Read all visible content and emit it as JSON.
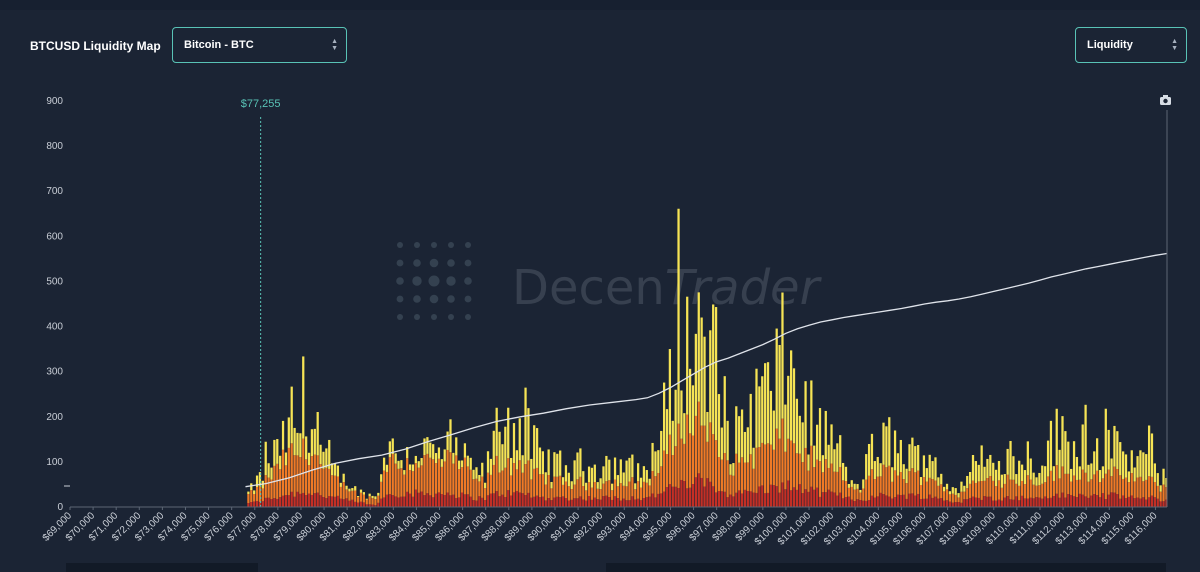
{
  "header": {
    "title": "BTCUSD Liquidity Map",
    "asset_select": "Bitcoin - BTC",
    "mode_select": "Liquidity"
  },
  "watermark": {
    "text_a": "Decen",
    "text_b": "Trader"
  },
  "colors": {
    "background": "#1b2434",
    "accent": "#59c3b6",
    "band_low": "#c42f25",
    "band_mid": "#ef7a26",
    "band_high": "#f6e455",
    "cumulative_line": "#dfe3ea"
  },
  "icons": {
    "snapshot": "camera-icon"
  },
  "chart_data": {
    "type": "bar",
    "stacked": true,
    "ylim": [
      0,
      900
    ],
    "yticks": [
      0,
      100,
      200,
      300,
      400,
      500,
      600,
      700,
      800,
      900
    ],
    "xlim": [
      69000,
      116500
    ],
    "xticks": [
      69000,
      70000,
      71000,
      72000,
      73000,
      74000,
      75000,
      76000,
      77000,
      78000,
      79000,
      80000,
      81000,
      82000,
      83000,
      84000,
      85000,
      86000,
      87000,
      88000,
      89000,
      90000,
      91000,
      92000,
      93000,
      94000,
      95000,
      96000,
      97000,
      98000,
      99000,
      100000,
      101000,
      102000,
      103000,
      104000,
      105000,
      106000,
      107000,
      108000,
      109000,
      110000,
      111000,
      112000,
      113000,
      114000,
      115000,
      116000
    ],
    "xtick_labels": [
      "$69,000",
      "$70,000",
      "$71,000",
      "$72,000",
      "$73,000",
      "$74,000",
      "$75,000",
      "$76,000",
      "$77,000",
      "$78,000",
      "$79,000",
      "$80,000",
      "$81,000",
      "$82,000",
      "$83,000",
      "$84,000",
      "$85,000",
      "$86,000",
      "$87,000",
      "$88,000",
      "$89,000",
      "$90,000",
      "$91,000",
      "$92,000",
      "$93,000",
      "$94,000",
      "$95,000",
      "$96,000",
      "$97,000",
      "$98,000",
      "$99,000",
      "$100,000",
      "$101,000",
      "$102,000",
      "$103,000",
      "$104,000",
      "$105,000",
      "$106,000",
      "$107,000",
      "$108,000",
      "$109,000",
      "$110,000",
      "$111,000",
      "$112,000",
      "$113,000",
      "$114,000",
      "$115,000",
      "$116,000"
    ],
    "current_price": {
      "value": 77255,
      "label": "$77,255"
    },
    "bucket_width": 125,
    "profile": [
      [
        76600,
        10,
        15,
        0
      ],
      [
        77000,
        10,
        20,
        15
      ],
      [
        77300,
        15,
        30,
        25
      ],
      [
        77800,
        20,
        50,
        40
      ],
      [
        78200,
        25,
        70,
        40
      ],
      [
        78500,
        30,
        80,
        50
      ],
      [
        78900,
        30,
        80,
        60
      ],
      [
        79300,
        35,
        90,
        80
      ],
      [
        79600,
        30,
        80,
        60
      ],
      [
        80000,
        25,
        50,
        30
      ],
      [
        80500,
        20,
        35,
        20
      ],
      [
        81000,
        15,
        25,
        10
      ],
      [
        81600,
        10,
        15,
        5
      ],
      [
        82000,
        5,
        15,
        5
      ],
      [
        82300,
        5,
        10,
        5
      ],
      [
        82600,
        25,
        60,
        35
      ],
      [
        83000,
        30,
        70,
        25
      ],
      [
        83500,
        30,
        60,
        20
      ],
      [
        84000,
        30,
        60,
        20
      ],
      [
        84500,
        30,
        70,
        30
      ],
      [
        85000,
        30,
        60,
        20
      ],
      [
        85500,
        30,
        70,
        30
      ],
      [
        86000,
        25,
        60,
        20
      ],
      [
        86500,
        20,
        40,
        20
      ],
      [
        87000,
        20,
        30,
        20
      ],
      [
        87500,
        30,
        60,
        80
      ],
      [
        88000,
        30,
        60,
        100
      ],
      [
        88500,
        30,
        60,
        80
      ],
      [
        89000,
        25,
        45,
        70
      ],
      [
        89500,
        20,
        40,
        40
      ],
      [
        90000,
        20,
        35,
        40
      ],
      [
        90500,
        20,
        30,
        30
      ],
      [
        91000,
        20,
        30,
        40
      ],
      [
        91500,
        20,
        30,
        40
      ],
      [
        92000,
        20,
        30,
        30
      ],
      [
        92500,
        20,
        30,
        40
      ],
      [
        93000,
        20,
        30,
        40
      ],
      [
        93500,
        20,
        30,
        30
      ],
      [
        94000,
        20,
        30,
        30
      ],
      [
        94500,
        30,
        50,
        70
      ],
      [
        95000,
        40,
        80,
        130
      ],
      [
        95400,
        50,
        110,
        210
      ],
      [
        95800,
        50,
        120,
        170
      ],
      [
        96200,
        60,
        130,
        200
      ],
      [
        96600,
        50,
        110,
        170
      ],
      [
        97000,
        40,
        80,
        110
      ],
      [
        97500,
        30,
        60,
        60
      ],
      [
        98000,
        30,
        60,
        70
      ],
      [
        98500,
        35,
        70,
        120
      ],
      [
        99000,
        40,
        80,
        130
      ],
      [
        99500,
        40,
        90,
        140
      ],
      [
        100000,
        50,
        100,
        190
      ],
      [
        100400,
        40,
        80,
        140
      ],
      [
        100800,
        40,
        70,
        110
      ],
      [
        101200,
        35,
        60,
        85
      ],
      [
        101600,
        30,
        55,
        75
      ],
      [
        102000,
        30,
        50,
        70
      ],
      [
        102400,
        25,
        40,
        45
      ],
      [
        102800,
        20,
        20,
        10
      ],
      [
        103200,
        15,
        20,
        10
      ],
      [
        103600,
        20,
        40,
        50
      ],
      [
        104000,
        25,
        45,
        55
      ],
      [
        104500,
        25,
        50,
        75
      ],
      [
        105000,
        25,
        40,
        55
      ],
      [
        105500,
        25,
        40,
        45
      ],
      [
        106000,
        25,
        45,
        50
      ],
      [
        106500,
        20,
        35,
        35
      ],
      [
        107000,
        15,
        20,
        10
      ],
      [
        107400,
        10,
        10,
        10
      ],
      [
        107800,
        15,
        25,
        20
      ],
      [
        108200,
        20,
        30,
        30
      ],
      [
        108600,
        20,
        35,
        40
      ],
      [
        109000,
        20,
        40,
        40
      ],
      [
        109400,
        20,
        40,
        50
      ],
      [
        109800,
        20,
        35,
        40
      ],
      [
        110200,
        20,
        35,
        50
      ],
      [
        110600,
        20,
        40,
        55
      ],
      [
        111000,
        20,
        30,
        40
      ],
      [
        111500,
        25,
        45,
        80
      ],
      [
        112000,
        25,
        45,
        85
      ],
      [
        112500,
        25,
        40,
        70
      ],
      [
        113000,
        25,
        45,
        80
      ],
      [
        113500,
        25,
        45,
        60
      ],
      [
        114000,
        25,
        40,
        60
      ],
      [
        114500,
        25,
        40,
        55
      ],
      [
        115000,
        20,
        40,
        40
      ],
      [
        115500,
        20,
        35,
        45
      ],
      [
        116000,
        20,
        30,
        40
      ],
      [
        116400,
        15,
        25,
        20
      ]
    ],
    "cumulative": [
      [
        76600,
        45
      ],
      [
        77500,
        52
      ],
      [
        78500,
        65
      ],
      [
        79500,
        82
      ],
      [
        80500,
        97
      ],
      [
        81500,
        107
      ],
      [
        82500,
        115
      ],
      [
        83500,
        128
      ],
      [
        84500,
        145
      ],
      [
        85500,
        160
      ],
      [
        86500,
        176
      ],
      [
        87500,
        190
      ],
      [
        88500,
        200
      ],
      [
        89500,
        208
      ],
      [
        90500,
        218
      ],
      [
        91500,
        226
      ],
      [
        92500,
        232
      ],
      [
        93500,
        238
      ],
      [
        94000,
        242
      ],
      [
        94500,
        252
      ],
      [
        95000,
        265
      ],
      [
        95500,
        280
      ],
      [
        96000,
        295
      ],
      [
        96500,
        310
      ],
      [
        97000,
        322
      ],
      [
        97500,
        330
      ],
      [
        98000,
        340
      ],
      [
        98500,
        350
      ],
      [
        99000,
        360
      ],
      [
        99500,
        372
      ],
      [
        100000,
        385
      ],
      [
        100500,
        395
      ],
      [
        101000,
        403
      ],
      [
        101500,
        410
      ],
      [
        102000,
        415
      ],
      [
        102500,
        420
      ],
      [
        103000,
        424
      ],
      [
        103500,
        428
      ],
      [
        104000,
        432
      ],
      [
        104500,
        436
      ],
      [
        105000,
        440
      ],
      [
        105500,
        445
      ],
      [
        106000,
        450
      ],
      [
        106500,
        454
      ],
      [
        107000,
        457
      ],
      [
        107500,
        461
      ],
      [
        108000,
        466
      ],
      [
        108500,
        472
      ],
      [
        109000,
        478
      ],
      [
        109500,
        484
      ],
      [
        110000,
        490
      ],
      [
        110500,
        496
      ],
      [
        111000,
        503
      ],
      [
        111500,
        510
      ],
      [
        112000,
        516
      ],
      [
        112500,
        522
      ],
      [
        113000,
        528
      ],
      [
        113500,
        533
      ],
      [
        114000,
        538
      ],
      [
        114500,
        543
      ],
      [
        115000,
        548
      ],
      [
        115500,
        553
      ],
      [
        116000,
        558
      ],
      [
        116500,
        562
      ]
    ],
    "bands": [
      "low",
      "mid",
      "high"
    ]
  }
}
